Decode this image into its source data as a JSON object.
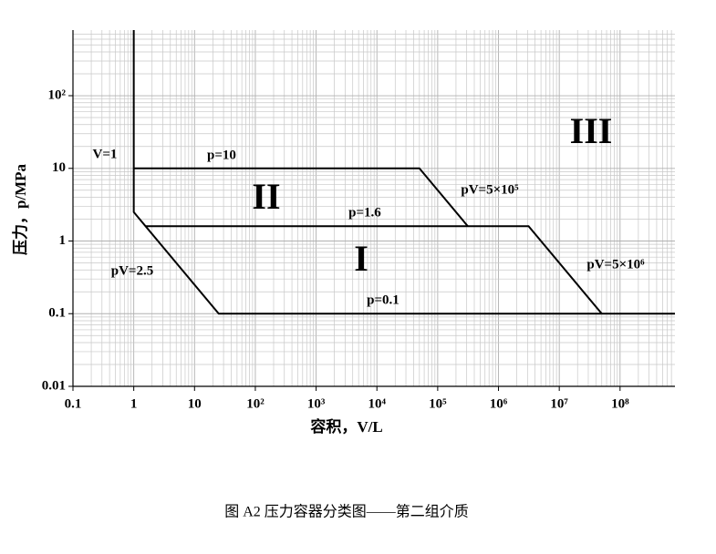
{
  "chart_data": {
    "type": "line",
    "x_label": "容积，V/L",
    "y_label": "压力，p/MPa",
    "caption": "图 A2 压力容器分类图——第二组介质",
    "xscale": "log",
    "yscale": "log",
    "grid": true,
    "minor_grid": true,
    "xlim": [
      0.1,
      800000000
    ],
    "ylim": [
      0.01,
      800
    ],
    "xticks": [
      0.1,
      1,
      10,
      {
        "value": 100,
        "label": "10²"
      },
      {
        "value": 1000,
        "label": "10³"
      },
      {
        "value": 10000,
        "label": "10⁴"
      },
      {
        "value": 100000,
        "label": "10⁵"
      },
      {
        "value": 1000000,
        "label": "10⁶"
      },
      {
        "value": 10000000,
        "label": "10⁷"
      },
      {
        "value": 100000000,
        "label": "10⁸"
      }
    ],
    "yticks": [
      0.01,
      0.1,
      1,
      10,
      {
        "value": 100,
        "label": "10²"
      }
    ],
    "series": [
      {
        "color": "#000000",
        "x": [
          1,
          1,
          25,
          800000000
        ],
        "values": [
          800,
          2.5,
          0.1,
          0.1
        ]
      },
      {
        "color": "#000000",
        "x": [
          1,
          50000,
          312500
        ],
        "values": [
          10,
          10,
          1.6
        ]
      },
      {
        "color": "#000000",
        "x": [
          1.5625,
          3125000,
          50000000
        ],
        "values": [
          1.6,
          1.6,
          0.1
        ]
      }
    ],
    "annotations": [
      "V=1",
      "p=10",
      "pV=5×10⁵",
      "p=1.6",
      "pV=2.5",
      "p=0.1",
      "pV=5×10⁶",
      "I",
      "II",
      "III"
    ]
  }
}
